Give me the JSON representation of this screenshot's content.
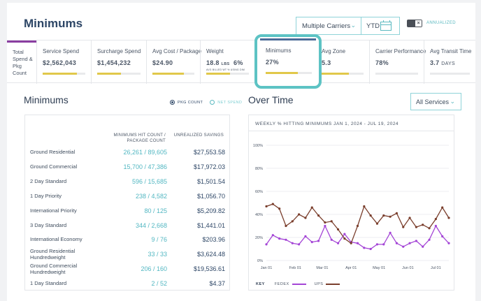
{
  "header": {
    "title": "Minimums",
    "carrier_filter": "Multiple Carriers",
    "period_filter": "YTD",
    "annualized_label": "ANNUALIZED",
    "annualized_on": false
  },
  "kpi_first_label": "Total Spend & Pkg Count",
  "kpis": [
    {
      "label": "Service Spend",
      "value": "$2,562,043",
      "fill": 0.8
    },
    {
      "label": "Surcharge Spend",
      "value": "$1,454,232",
      "fill": 0.55
    },
    {
      "label": "Avg Cost / Package",
      "value": "$24.90",
      "fill": 0.75
    },
    {
      "label": "Weight",
      "value_a": "18.8",
      "unit_a": "LBS",
      "value_b": "6%",
      "sub": "AVG BILLED WT   % USING DIM",
      "fill": 0.55
    },
    {
      "label": "Minimums",
      "value": "27%",
      "fill": 0.7
    },
    {
      "label": "Avg Zone",
      "value": "5.3",
      "fill": 0.65
    },
    {
      "label": "Carrier Performance",
      "value": "78%",
      "fill": 0.0
    },
    {
      "label": "Avg Transit Time",
      "value": "3.7",
      "unit": "DAYS",
      "fill": 0.0
    }
  ],
  "minimums_section": {
    "title": "Minimums",
    "radio_pkg": "PKG COUNT",
    "radio_spend": "NET SPEND",
    "table_headers": {
      "count": "MINIMUMS HIT COUNT / PACKAGE COUNT",
      "amount": "UNREALIZED SAVINGS"
    },
    "rows": [
      {
        "service": "Ground Residential",
        "count": "26,261 / 89,605",
        "amount": "$27,553.58"
      },
      {
        "service": "Ground Commercial",
        "count": "15,700 / 47,386",
        "amount": "$17,972.03"
      },
      {
        "service": "2 Day Standard",
        "count": "596 / 15,685",
        "amount": "$1,501.54"
      },
      {
        "service": "1 Day Priority",
        "count": "238 / 4,582",
        "amount": "$1,056.70"
      },
      {
        "service": "International Priority",
        "count": "80 / 125",
        "amount": "$5,209.82"
      },
      {
        "service": "3 Day Standard",
        "count": "344 / 2,668",
        "amount": "$1,441.01"
      },
      {
        "service": "International Economy",
        "count": "9 / 76",
        "amount": "$203.96"
      },
      {
        "service": "Ground Residential Hundredweight",
        "count": "33 / 33",
        "amount": "$3,624.48"
      },
      {
        "service": "Ground Commercial Hundredweight",
        "count": "206 / 160",
        "amount": "$19,536.61"
      },
      {
        "service": "1 Day Standard",
        "count": "2 / 52",
        "amount": "$4.37"
      }
    ]
  },
  "over_time_section": {
    "title": "Over Time",
    "services_filter": "All Services",
    "legend_key": "KEY"
  },
  "colors": {
    "fedex": "#a445d6",
    "ups": "#7a3e2c",
    "accent": "#5bb9c0",
    "bar": "#e1c84a"
  },
  "chart_data": {
    "type": "line",
    "title": "WEEKLY % HITTING MINIMUMS JAN 1, 2024 - JUL 19, 2024",
    "x": [
      "2024-01-01",
      "2024-01-08",
      "2024-01-15",
      "2024-01-22",
      "2024-01-29",
      "2024-02-05",
      "2024-02-12",
      "2024-02-19",
      "2024-02-26",
      "2024-03-04",
      "2024-03-11",
      "2024-03-18",
      "2024-03-25",
      "2024-04-01",
      "2024-04-08",
      "2024-04-15",
      "2024-04-22",
      "2024-04-29",
      "2024-05-06",
      "2024-05-13",
      "2024-05-20",
      "2024-05-27",
      "2024-06-03",
      "2024-06-10",
      "2024-06-17",
      "2024-06-24",
      "2024-07-01",
      "2024-07-08",
      "2024-07-15"
    ],
    "x_ticks": [
      "Jan 01",
      "Feb 01",
      "Mar 01",
      "Apr 01",
      "May 01",
      "Jun 01",
      "Jul 01"
    ],
    "y_ticks": [
      "0%",
      "20%",
      "40%",
      "60%",
      "80%",
      "100%"
    ],
    "ylim": [
      0,
      100
    ],
    "grid": true,
    "series": [
      {
        "name": "FEDEX",
        "values": [
          14,
          22,
          19,
          18,
          15,
          14,
          21,
          16,
          17,
          30,
          18,
          15,
          23,
          16,
          15,
          11,
          10,
          14,
          14,
          24,
          15,
          12,
          15,
          17,
          12,
          18,
          30,
          21,
          15
        ]
      },
      {
        "name": "UPS",
        "values": [
          47,
          49,
          45,
          30,
          34,
          40,
          37,
          46,
          39,
          33,
          34,
          27,
          19,
          15,
          30,
          47,
          39,
          32,
          39,
          38,
          41,
          29,
          37,
          29,
          31,
          28,
          36,
          46,
          37
        ]
      }
    ]
  }
}
